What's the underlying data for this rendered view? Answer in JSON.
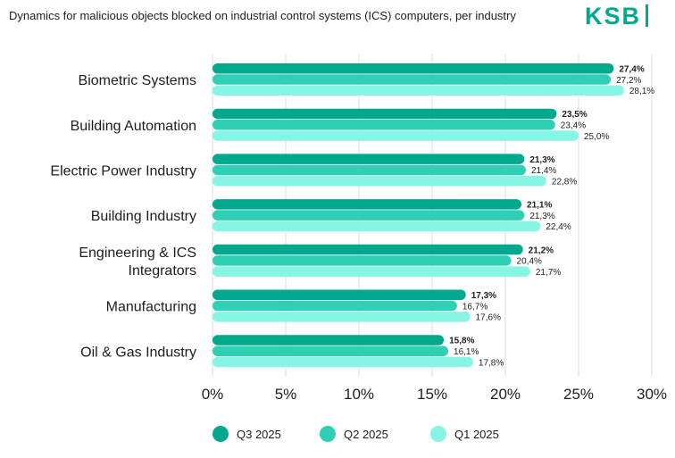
{
  "header": {
    "title": "Dynamics for malicious objects blocked on industrial control systems (ICS) computers, per industry",
    "logo_text": "KSB"
  },
  "colors": {
    "q3": "#00a88e",
    "q2": "#2ecfb4",
    "q1": "#86f5e4",
    "grid": "#dcdcdc",
    "text": "#1d1d1b",
    "brand": "#00a88e"
  },
  "chart_data": {
    "type": "bar",
    "orientation": "horizontal",
    "categories": [
      [
        "Biometric Systems"
      ],
      [
        "Building Automation"
      ],
      [
        "Electric Power Industry"
      ],
      [
        "Building Industry"
      ],
      [
        "Engineering & ICS",
        "Integrators"
      ],
      [
        "Manufacturing"
      ],
      [
        "Oil & Gas Industry"
      ]
    ],
    "series": [
      {
        "name": "Q3 2025",
        "values": [
          27.4,
          23.5,
          21.3,
          21.1,
          21.2,
          17.3,
          15.8
        ],
        "labels": [
          "27,4%",
          "23,5%",
          "21,3%",
          "21,1%",
          "21,2%",
          "17,3%",
          "15,8%"
        ]
      },
      {
        "name": "Q2 2025",
        "values": [
          27.2,
          23.4,
          21.4,
          21.3,
          20.4,
          16.7,
          16.1
        ],
        "labels": [
          "27,2%",
          "23,4%",
          "21,4%",
          "21,3%",
          "20,4%",
          "16,7%",
          "16,1%"
        ]
      },
      {
        "name": "Q1 2025",
        "values": [
          28.1,
          25.0,
          22.8,
          22.4,
          21.7,
          17.6,
          17.8
        ],
        "labels": [
          "28,1%",
          "25,0%",
          "22,8%",
          "22,4%",
          "21,7%",
          "17,6%",
          "17,8%"
        ]
      }
    ],
    "xlim": [
      0,
      30
    ],
    "xticks": [
      0,
      5,
      10,
      15,
      20,
      25,
      30
    ],
    "xtick_labels": [
      "0%",
      "5%",
      "10%",
      "15%",
      "20%",
      "25%",
      "30%"
    ],
    "grid": true,
    "legend": "bottom",
    "title": "Dynamics for malicious objects blocked on industrial control systems (ICS) computers, per industry",
    "xlabel": "",
    "ylabel": ""
  }
}
